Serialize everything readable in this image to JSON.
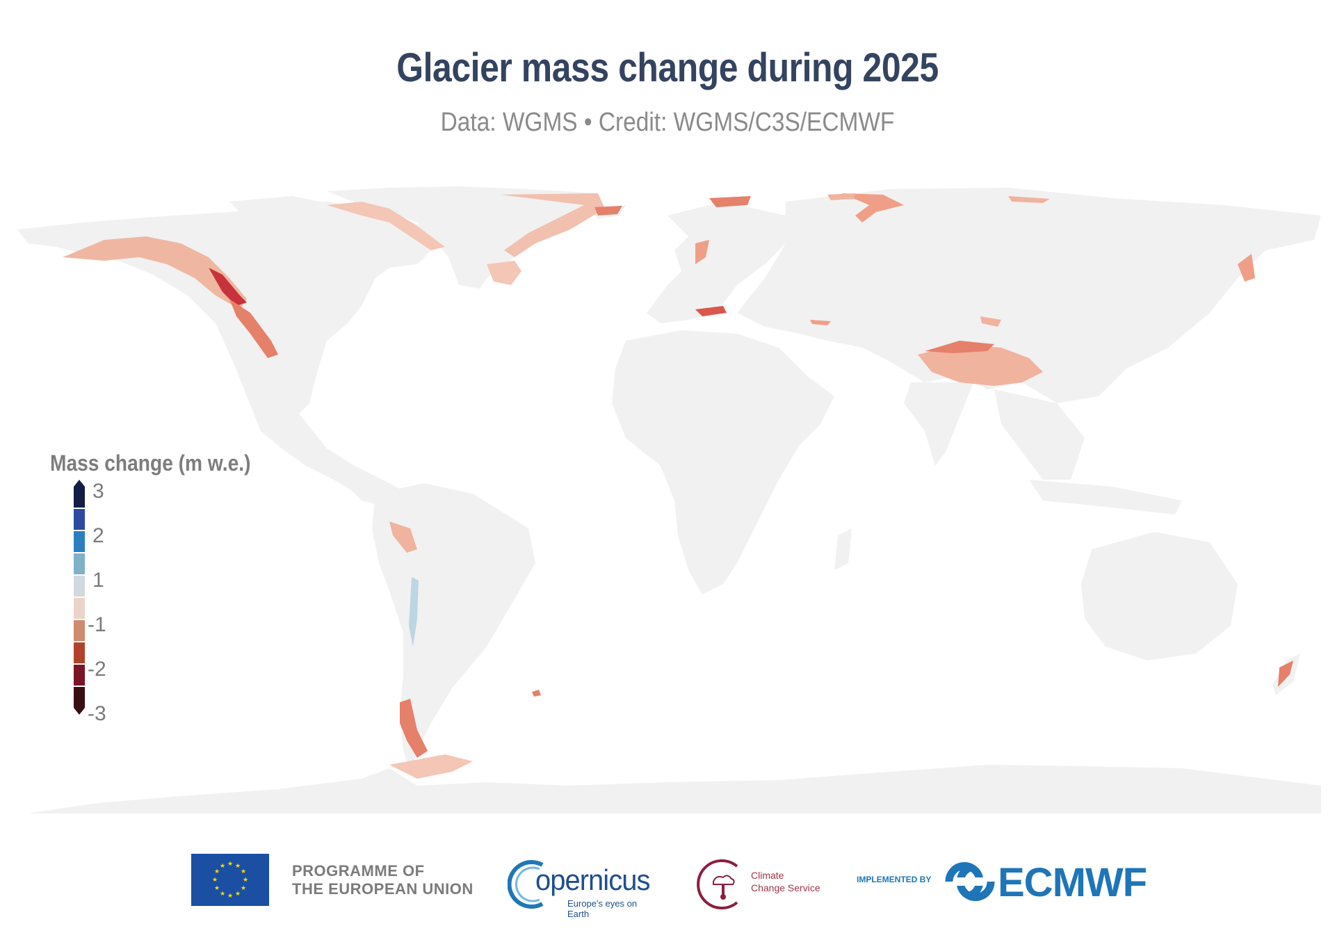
{
  "title": "Glacier mass change during 2025",
  "subtitle": "Data: WGMS • Credit: WGMS/C3S/ECMWF",
  "legend": {
    "title": "Mass change (m w.e.)",
    "ticks": [
      "3",
      "2",
      "1",
      "-1",
      "-2",
      "-3"
    ],
    "colors": [
      "#141d45",
      "#2e4aa0",
      "#2b7fc1",
      "#7fb1c9",
      "#d3d8dc",
      "#ecd3c8",
      "#d08b6e",
      "#b2412a",
      "#7a1426",
      "#3a0f14"
    ]
  },
  "colors": {
    "land": "#f1f1f1",
    "background": "#ffffff",
    "title": "#34435f",
    "glacier_loss_light": "#f0b39e",
    "glacier_loss_mid": "#e5806a",
    "glacier_loss_strong": "#c8323b"
  },
  "footer": {
    "eu_line1": "PROGRAMME OF",
    "eu_line2": "THE EUROPEAN UNION",
    "copernicus_word": "opernicus",
    "copernicus_tagline": "Europe's eyes on Earth",
    "c3s_line1": "Climate",
    "c3s_line2": "Change Service",
    "implemented_by": "IMPLEMENTED BY",
    "ecmwf": "ECMWF"
  }
}
